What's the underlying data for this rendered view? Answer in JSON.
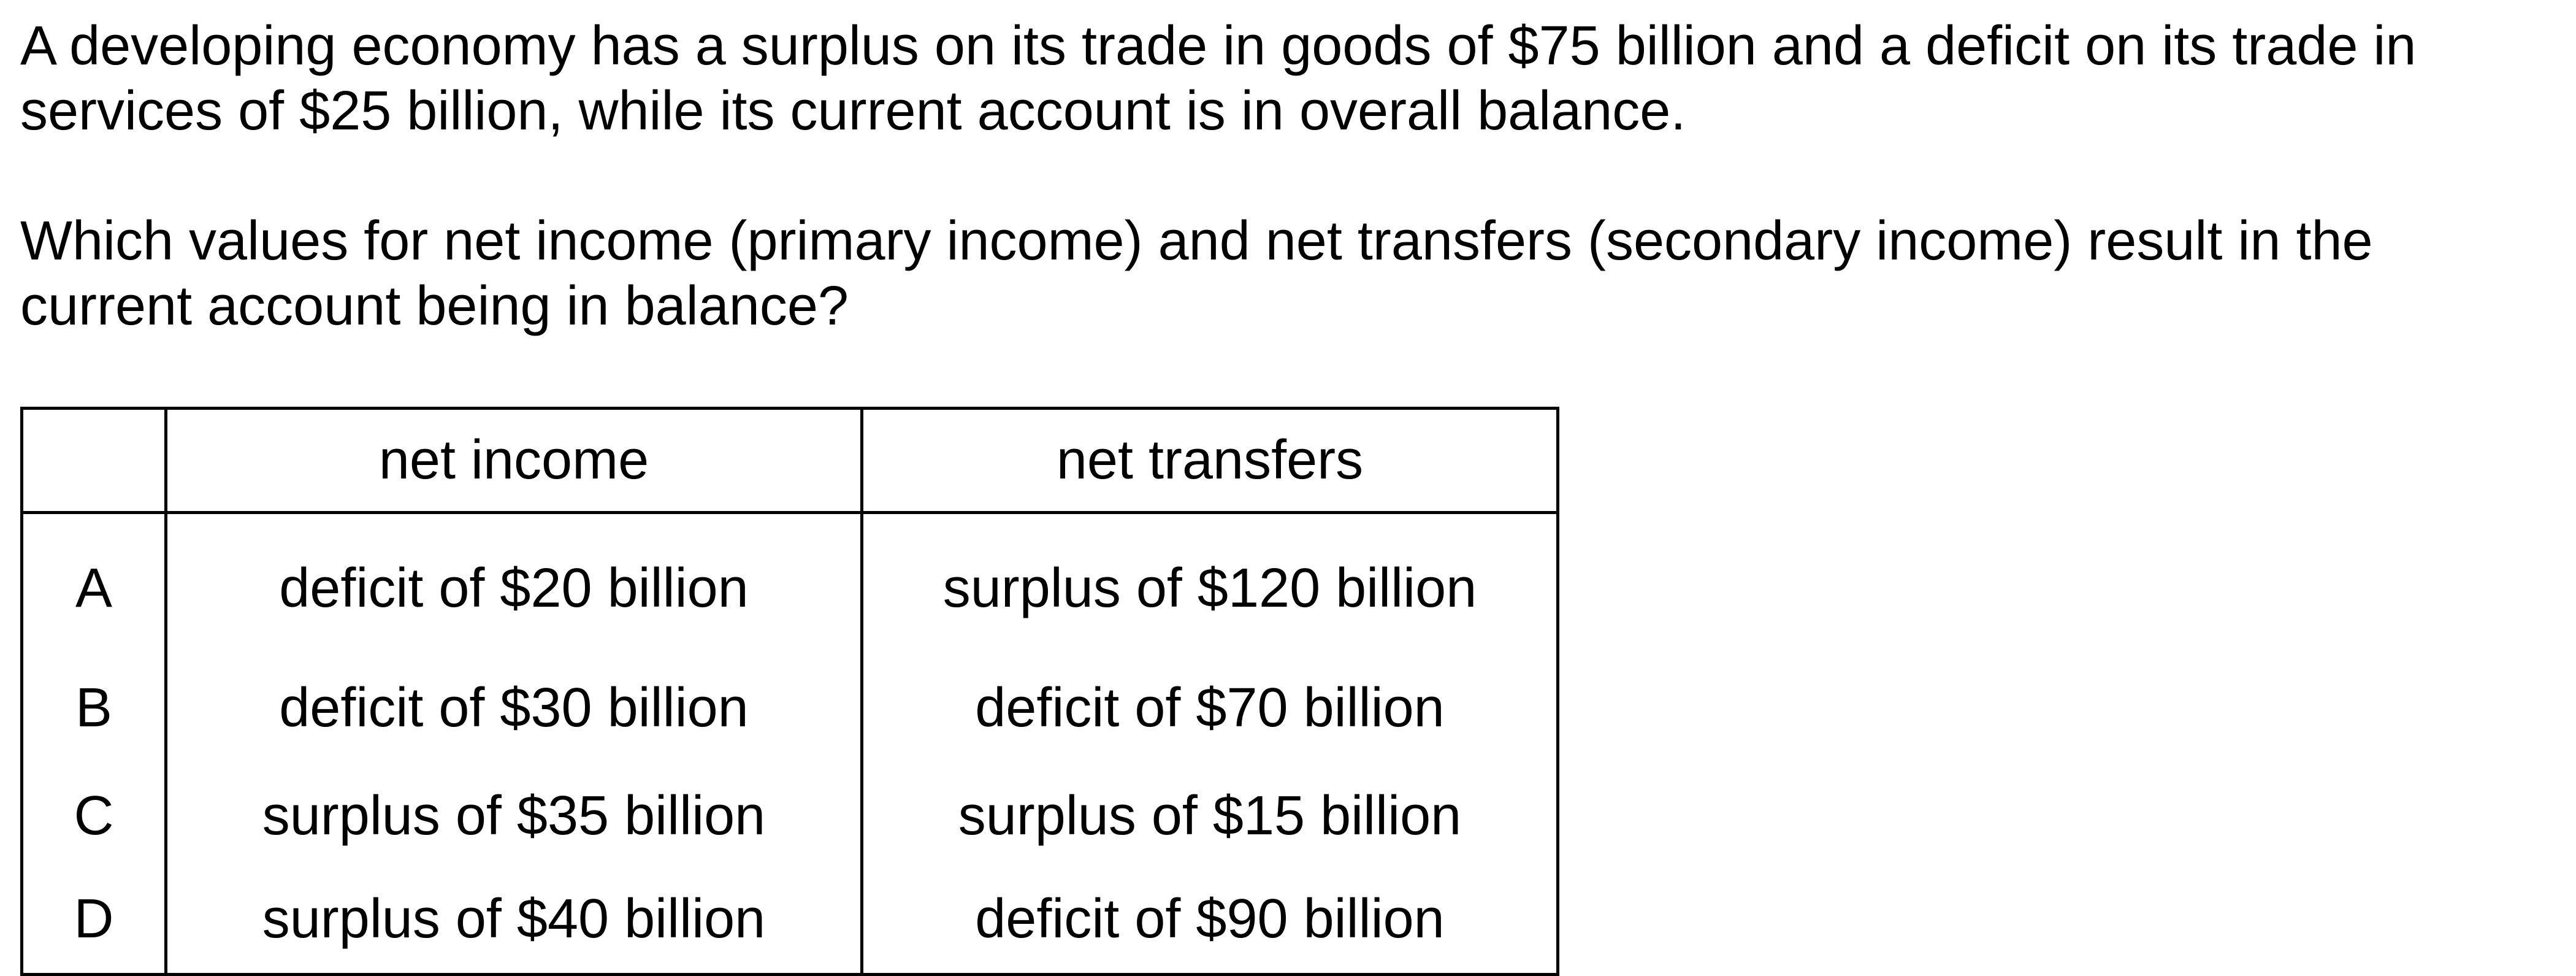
{
  "question": {
    "paragraph_1": "A developing economy has a surplus on its trade in goods of $75 billion and a deficit on its trade in services of $25 billion, while its current account is in overall balance.",
    "paragraph_2": "Which values for net income (primary income) and net transfers (secondary income) result in the current account being in balance?"
  },
  "table": {
    "headers": [
      "",
      "net income",
      "net transfers"
    ],
    "rows": [
      {
        "letter": "A",
        "net_income": "deficit of $20 billion",
        "net_transfers": "surplus of $120 billion"
      },
      {
        "letter": "B",
        "net_income": "deficit of $30 billion",
        "net_transfers": "deficit of $70 billion"
      },
      {
        "letter": "C",
        "net_income": "surplus of $35 billion",
        "net_transfers": "surplus of $15 billion"
      },
      {
        "letter": "D",
        "net_income": "surplus of $40 billion",
        "net_transfers": "deficit of $90 billion"
      }
    ]
  }
}
